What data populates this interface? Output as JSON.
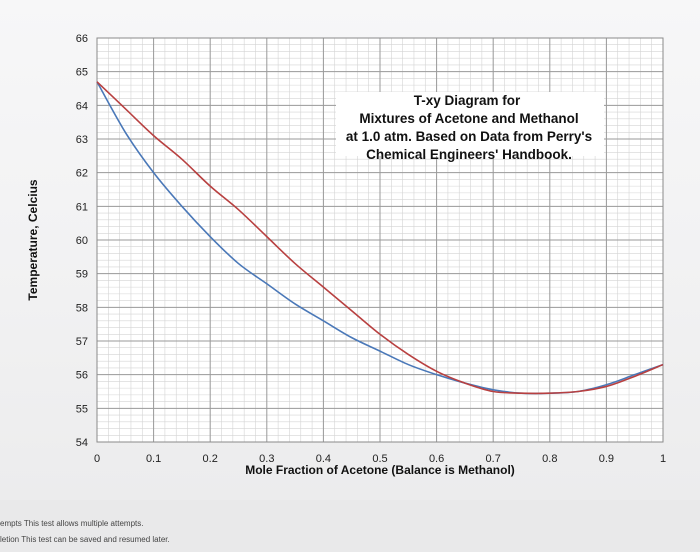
{
  "chart_data": {
    "type": "line",
    "title": [
      "T-xy Diagram for",
      "Mixtures of Acetone and Methanol",
      "at 1.0 atm. Based on Data from Perry's",
      "Chemical Engineers' Handbook."
    ],
    "xlabel": "Mole Fraction of Acetone (Balance is Methanol)",
    "ylabel": "Temperature, Celcius",
    "xlim": [
      0,
      1
    ],
    "ylim": [
      54,
      66
    ],
    "x_ticks": [
      "0",
      "0.1",
      "0.2",
      "0.3",
      "0.4",
      "0.5",
      "0.6",
      "0.7",
      "0.8",
      "0.9",
      "1"
    ],
    "y_ticks": [
      "54",
      "55",
      "56",
      "57",
      "58",
      "59",
      "60",
      "61",
      "62",
      "63",
      "64",
      "65",
      "66"
    ],
    "grid": true,
    "legend": "none",
    "series": [
      {
        "color": "#4a78b8",
        "x": [
          0.0,
          0.05,
          0.1,
          0.15,
          0.2,
          0.25,
          0.3,
          0.35,
          0.4,
          0.45,
          0.5,
          0.55,
          0.6,
          0.65,
          0.7,
          0.75,
          0.8,
          0.85,
          0.9,
          0.95,
          1.0
        ],
        "y": [
          64.7,
          63.2,
          62.0,
          61.0,
          60.1,
          59.3,
          58.7,
          58.1,
          57.6,
          57.1,
          56.7,
          56.3,
          56.0,
          55.75,
          55.55,
          55.45,
          55.45,
          55.5,
          55.7,
          56.0,
          56.3
        ]
      },
      {
        "color": "#b84040",
        "x": [
          0.0,
          0.05,
          0.1,
          0.15,
          0.2,
          0.25,
          0.3,
          0.35,
          0.4,
          0.45,
          0.5,
          0.55,
          0.6,
          0.65,
          0.7,
          0.75,
          0.8,
          0.85,
          0.9,
          0.95,
          1.0
        ],
        "y": [
          64.7,
          63.9,
          63.1,
          62.4,
          61.6,
          60.9,
          60.1,
          59.3,
          58.6,
          57.9,
          57.2,
          56.6,
          56.1,
          55.75,
          55.5,
          55.45,
          55.45,
          55.5,
          55.65,
          55.95,
          56.3
        ]
      }
    ]
  },
  "footer": {
    "line1": "empts This test allows multiple attempts.",
    "line2": "letion This test can be saved and resumed later."
  }
}
